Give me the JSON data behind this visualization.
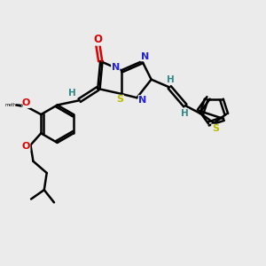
{
  "background_color": "#ebebeb",
  "atom_colors": {
    "C": "#000000",
    "N": "#2222dd",
    "O": "#dd0000",
    "S": "#bbbb00",
    "H": "#338888"
  },
  "bond_color": "#000000",
  "figsize": [
    3.0,
    3.0
  ],
  "dpi": 100
}
